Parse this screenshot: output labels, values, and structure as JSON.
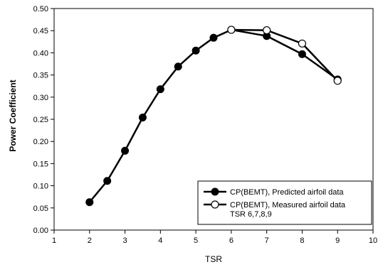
{
  "chart_data": {
    "type": "line",
    "xlabel": "TSR",
    "ylabel": "Power Coefficient",
    "xlim": [
      1,
      10
    ],
    "ylim": [
      0,
      0.5
    ],
    "x_ticks": [
      1,
      2,
      3,
      4,
      5,
      6,
      7,
      8,
      9,
      10
    ],
    "y_ticks": [
      0.0,
      0.05,
      0.1,
      0.15,
      0.2,
      0.25,
      0.3,
      0.35,
      0.4,
      0.45,
      0.5
    ],
    "y_tick_labels": [
      "0.00",
      "0.05",
      "0.10",
      "0.15",
      "0.20",
      "0.25",
      "0.30",
      "0.35",
      "0.40",
      "0.45",
      "0.50"
    ],
    "grid": false,
    "legend_position": "bottom-right",
    "series": [
      {
        "name": "CP(BEMT), Predicted airfoil data",
        "marker": "filled-circle",
        "color": "#000000",
        "x": [
          2,
          2.5,
          3,
          3.5,
          4,
          4.5,
          5,
          5.5,
          6,
          7,
          8,
          9
        ],
        "y": [
          0.063,
          0.111,
          0.179,
          0.254,
          0.318,
          0.369,
          0.405,
          0.434,
          0.452,
          0.438,
          0.397,
          0.34
        ]
      },
      {
        "name": "CP(BEMT), Measured airfoil data",
        "name_line2": "TSR 6,7,8,9",
        "marker": "open-circle",
        "color": "#000000",
        "x": [
          6,
          7,
          8,
          9
        ],
        "y": [
          0.452,
          0.451,
          0.421,
          0.337
        ]
      }
    ]
  }
}
